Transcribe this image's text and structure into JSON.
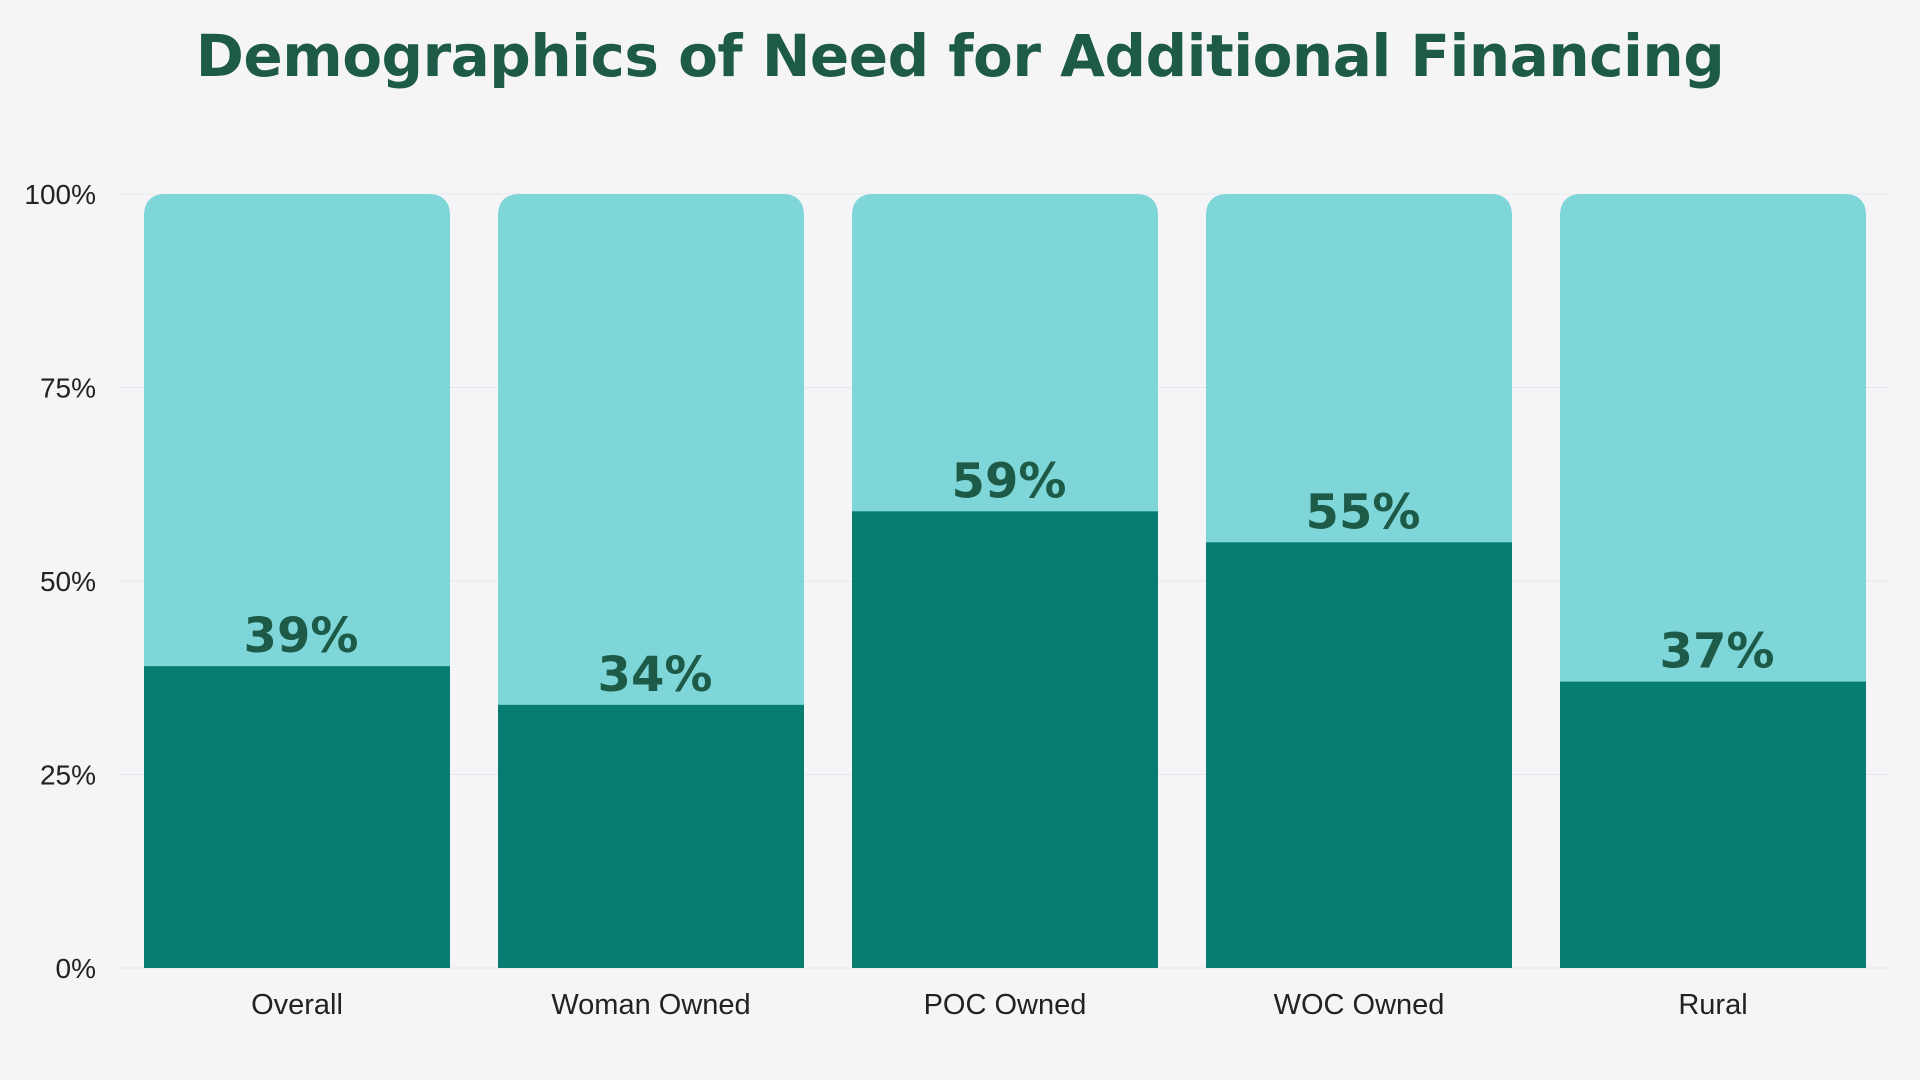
{
  "chart_data": {
    "type": "bar",
    "title": "Demographics of Need for Additional Financing",
    "categories": [
      "Overall",
      "Woman Owned",
      "POC Owned",
      "WOC Owned",
      "Rural"
    ],
    "values": [
      39,
      34,
      59,
      55,
      37
    ],
    "value_labels": [
      "39%",
      "34%",
      "59%",
      "55%",
      "37%"
    ],
    "stacked_background_total": 100,
    "ylim": [
      0,
      100
    ],
    "yticks": [
      0,
      25,
      50,
      75,
      100
    ],
    "ytick_labels": [
      "0%",
      "25%",
      "50%",
      "75%",
      "100%"
    ],
    "xlabel": "",
    "ylabel": "",
    "grid": true,
    "legend": "none"
  },
  "colors": {
    "background": "#f5f5f7",
    "bar_fill": "#067d70",
    "bar_track": "#7fd6d8",
    "title": "#1d5a48",
    "value_label": "#1d5a48",
    "axis_text": "#222222",
    "gridline": "#e6e6ea"
  }
}
